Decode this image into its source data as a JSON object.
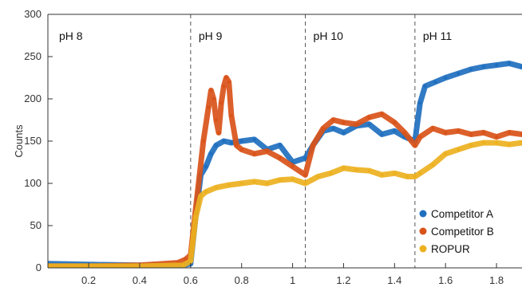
{
  "chart_data": {
    "type": "line",
    "title": "",
    "xlabel": "",
    "ylabel": "Counts",
    "xlim": [
      0.04,
      1.9
    ],
    "ylim": [
      0,
      300
    ],
    "x_ticks": [
      0.2,
      0.4,
      0.6,
      0.8,
      1,
      1.2,
      1.4,
      1.6,
      1.8
    ],
    "x_tick_labels": [
      "0.2",
      "0.4",
      "0.6",
      "0.8",
      "1",
      "1.2",
      "1.4",
      "1.6",
      "1.8"
    ],
    "y_ticks": [
      0,
      50,
      100,
      150,
      200,
      250,
      300
    ],
    "y_tick_labels": [
      "0",
      "50",
      "100",
      "150",
      "200",
      "250",
      "300"
    ],
    "grid": false,
    "legend_position": "bottom-right",
    "regions": [
      {
        "label": "pH 8",
        "start": 0.04,
        "end": 0.6
      },
      {
        "label": "pH 9",
        "start": 0.6,
        "end": 1.05
      },
      {
        "label": "pH 10",
        "start": 1.05,
        "end": 1.48
      },
      {
        "label": "pH 11",
        "start": 1.48,
        "end": 1.9
      }
    ],
    "dividers": [
      0.6,
      1.05,
      1.48
    ],
    "series": [
      {
        "name": "Competitor A",
        "color": "#1f6fbf",
        "x": [
          0.04,
          0.2,
          0.4,
          0.57,
          0.6,
          0.62,
          0.64,
          0.66,
          0.68,
          0.7,
          0.73,
          0.76,
          0.8,
          0.85,
          0.9,
          0.95,
          1.0,
          1.05,
          1.08,
          1.12,
          1.16,
          1.2,
          1.25,
          1.3,
          1.35,
          1.4,
          1.44,
          1.48,
          1.5,
          1.52,
          1.56,
          1.6,
          1.65,
          1.7,
          1.75,
          1.8,
          1.85,
          1.9
        ],
        "y": [
          5,
          4,
          3,
          3,
          5,
          60,
          110,
          120,
          135,
          145,
          150,
          148,
          150,
          152,
          140,
          145,
          125,
          130,
          145,
          162,
          165,
          160,
          168,
          170,
          158,
          162,
          155,
          150,
          195,
          215,
          220,
          225,
          230,
          235,
          238,
          240,
          242,
          238
        ]
      },
      {
        "name": "Competitor B",
        "color": "#d95319",
        "x": [
          0.04,
          0.2,
          0.4,
          0.55,
          0.58,
          0.6,
          0.62,
          0.65,
          0.67,
          0.68,
          0.69,
          0.7,
          0.71,
          0.72,
          0.73,
          0.74,
          0.75,
          0.76,
          0.78,
          0.8,
          0.85,
          0.9,
          0.95,
          1.0,
          1.05,
          1.08,
          1.12,
          1.16,
          1.2,
          1.25,
          1.3,
          1.35,
          1.4,
          1.44,
          1.48,
          1.5,
          1.55,
          1.6,
          1.65,
          1.7,
          1.75,
          1.8,
          1.85,
          1.9
        ],
        "y": [
          2,
          2,
          3,
          6,
          10,
          15,
          70,
          150,
          190,
          210,
          200,
          175,
          160,
          195,
          215,
          225,
          220,
          180,
          145,
          140,
          135,
          138,
          130,
          120,
          110,
          145,
          165,
          175,
          172,
          170,
          178,
          182,
          172,
          160,
          145,
          155,
          165,
          160,
          162,
          158,
          160,
          155,
          160,
          158
        ]
      },
      {
        "name": "ROPUR",
        "color": "#edb120",
        "x": [
          0.04,
          0.2,
          0.4,
          0.57,
          0.6,
          0.62,
          0.64,
          0.66,
          0.7,
          0.75,
          0.8,
          0.85,
          0.9,
          0.95,
          1.0,
          1.05,
          1.1,
          1.15,
          1.2,
          1.25,
          1.3,
          1.35,
          1.4,
          1.45,
          1.48,
          1.5,
          1.55,
          1.6,
          1.65,
          1.7,
          1.75,
          1.8,
          1.85,
          1.9
        ],
        "y": [
          2,
          2,
          2,
          3,
          8,
          60,
          85,
          90,
          95,
          98,
          100,
          102,
          100,
          104,
          105,
          100,
          108,
          112,
          118,
          116,
          115,
          110,
          112,
          108,
          108,
          112,
          122,
          135,
          140,
          145,
          148,
          148,
          146,
          148
        ]
      }
    ]
  }
}
